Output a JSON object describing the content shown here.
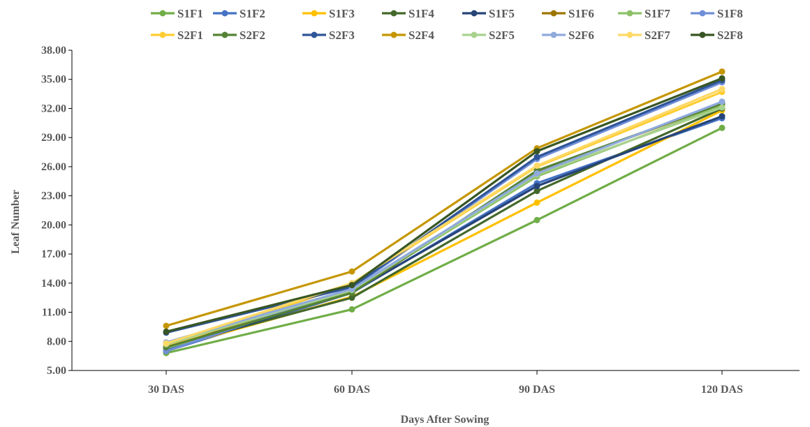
{
  "chart_data": {
    "type": "line",
    "categories": [
      "30 DAS",
      "60 DAS",
      "90 DAS",
      "120 DAS"
    ],
    "xlabel": "Days After Sowing",
    "ylabel": "Leaf Number",
    "ylim": [
      5,
      38
    ],
    "yticks": [
      "5.00",
      "8.00",
      "11.00",
      "14.00",
      "17.00",
      "20.00",
      "23.00",
      "26.00",
      "29.00",
      "32.00",
      "35.00",
      "38.00"
    ],
    "grid": false,
    "legend_position": "top",
    "series": [
      {
        "name": "S1F1",
        "color": "#70ad47",
        "values": [
          6.8,
          11.3,
          20.5,
          30.0
        ]
      },
      {
        "name": "S1F2",
        "color": "#4472c4",
        "values": [
          7.0,
          13.0,
          24.3,
          31.0
        ]
      },
      {
        "name": "S1F3",
        "color": "#ffc000",
        "values": [
          7.2,
          12.6,
          22.3,
          31.8
        ]
      },
      {
        "name": "S1F4",
        "color": "#43682b",
        "values": [
          7.4,
          12.5,
          23.5,
          32.0
        ]
      },
      {
        "name": "S1F5",
        "color": "#264478",
        "values": [
          7.1,
          13.1,
          24.0,
          31.2
        ]
      },
      {
        "name": "S1F6",
        "color": "#9e7500",
        "values": [
          7.6,
          13.0,
          25.5,
          32.5
        ]
      },
      {
        "name": "S1F7",
        "color": "#8cc168",
        "values": [
          7.3,
          13.2,
          25.0,
          32.3
        ]
      },
      {
        "name": "S1F8",
        "color": "#6f8ed8",
        "values": [
          7.0,
          13.5,
          26.8,
          34.7
        ]
      },
      {
        "name": "S2F1",
        "color": "#ffcd33",
        "values": [
          7.5,
          13.9,
          26.0,
          33.7
        ]
      },
      {
        "name": "S2F2",
        "color": "#548235",
        "values": [
          7.4,
          13.0,
          25.6,
          32.5
        ]
      },
      {
        "name": "S2F3",
        "color": "#2f5597",
        "values": [
          8.9,
          13.6,
          27.0,
          34.9
        ]
      },
      {
        "name": "S2F4",
        "color": "#c59600",
        "values": [
          9.6,
          15.2,
          27.9,
          35.8
        ]
      },
      {
        "name": "S2F5",
        "color": "#a9d18e",
        "values": [
          7.7,
          13.3,
          25.2,
          32.1
        ]
      },
      {
        "name": "S2F6",
        "color": "#8faadc",
        "values": [
          7.9,
          13.4,
          25.3,
          32.7
        ]
      },
      {
        "name": "S2F7",
        "color": "#ffd966",
        "values": [
          7.8,
          14.0,
          26.1,
          34.0
        ]
      },
      {
        "name": "S2F8",
        "color": "#375623",
        "values": [
          9.0,
          13.8,
          27.6,
          35.1
        ]
      }
    ]
  }
}
